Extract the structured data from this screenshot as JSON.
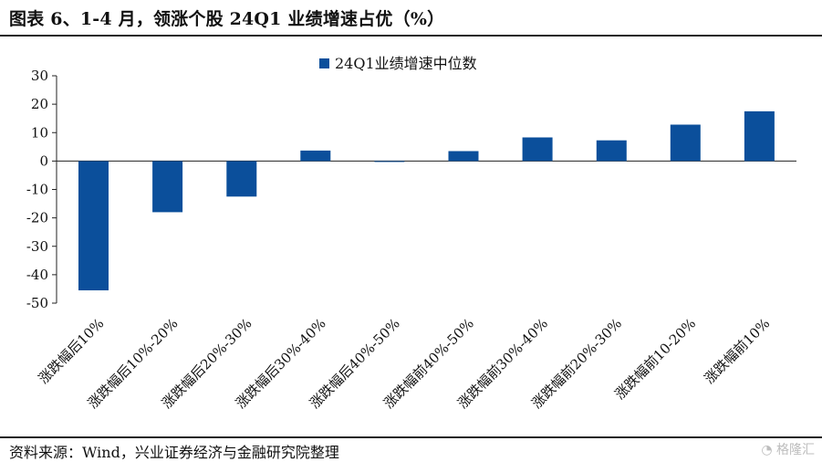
{
  "header": {
    "title": "图表 6、1-4 月，领涨个股 24Q1 业绩增速占优（%）"
  },
  "footer": {
    "source": "资料来源：Wind，兴业证券经济与金融研究院整理",
    "watermark": "格隆汇"
  },
  "colors": {
    "bar": "#0b4f9b",
    "axis": "#222222"
  },
  "icons": {
    "watermark_logo": "gelonghui-logo-icon"
  },
  "chart_data": {
    "type": "bar",
    "categories": [
      "涨跌幅后10%",
      "涨跌幅后10%-20%",
      "涨跌幅后20%-30%",
      "涨跌幅后30%-40%",
      "涨跌幅后40%-50%",
      "涨跌幅前40%-50%",
      "涨跌幅前30%-40%",
      "涨跌幅前20%-30%",
      "涨跌幅前10-20%",
      "涨跌幅前10%"
    ],
    "series": [
      {
        "name": "24Q1业绩增速中位数",
        "values": [
          -45.5,
          -18,
          -12.5,
          3.7,
          -0.3,
          3.5,
          8.3,
          7.3,
          12.8,
          17.5
        ]
      }
    ],
    "yticks": [
      "30",
      "20",
      "10",
      "0",
      "-10",
      "-20",
      "-30",
      "-40",
      "-50"
    ],
    "ylim": [
      -50,
      30
    ],
    "legend_position": "top-center",
    "grid": false
  }
}
